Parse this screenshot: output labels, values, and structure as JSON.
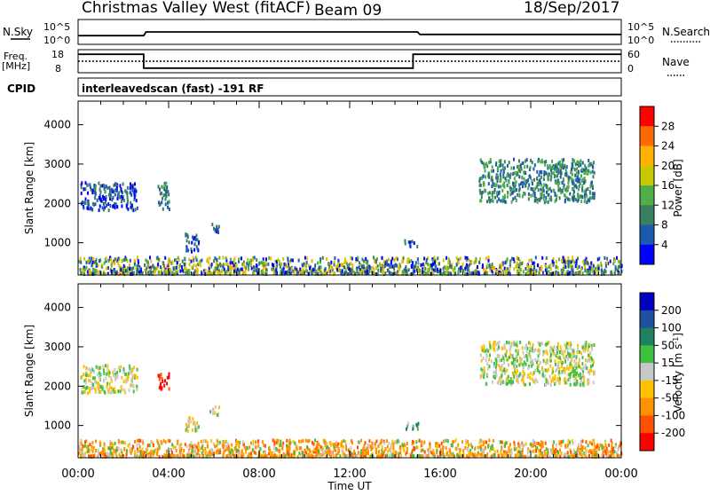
{
  "header": {
    "title": "Christmas Valley West (fitACF)",
    "beam": "Beam 09",
    "date": "18/Sep/2017"
  },
  "top_panels": {
    "nsky_label": "N.Sky",
    "nsky_ticks": [
      "10^5",
      "10^0"
    ],
    "nsearch_label": "N.Search",
    "nsearch_ticks": [
      "10^5",
      "10^0"
    ],
    "freq_label_1": "Freq.",
    "freq_label_2": "[MHz]",
    "freq_ticks": [
      "18",
      "8"
    ],
    "nave_label": "Nave",
    "nave_ticks": [
      "60",
      "0"
    ],
    "cpid_label": "CPID",
    "cpid_value": "interleavedscan (fast) -191 RF"
  },
  "chart_data": [
    {
      "type": "line",
      "name": "noise",
      "x_range_hours": [
        0,
        24
      ],
      "series": [
        {
          "values": [
            [
              0,
              0.35
            ],
            [
              2.9,
              0.35
            ],
            [
              3,
              0.5
            ],
            [
              15,
              0.5
            ],
            [
              15.1,
              0.4
            ],
            [
              24,
              0.4
            ]
          ]
        }
      ]
    },
    {
      "type": "line",
      "name": "frequency",
      "x_range_hours": [
        0,
        24
      ],
      "series": [
        {
          "values": [
            [
              0,
              0.8
            ],
            [
              2.9,
              0.8
            ],
            [
              2.9,
              0.2
            ],
            [
              14.8,
              0.2
            ],
            [
              14.8,
              0.8
            ],
            [
              24,
              0.8
            ]
          ]
        },
        {
          "values": [
            [
              0,
              0.5
            ],
            [
              24,
              0.5
            ]
          ],
          "dashed": true
        }
      ]
    },
    {
      "type": "heatmap",
      "name": "power",
      "ylabel": "Slant Range [km]",
      "ylim": [
        180,
        4600
      ],
      "y_ticks": [
        "1000",
        "2000",
        "3000",
        "4000"
      ],
      "colorbar_label": "Power [dB]",
      "colorbar_ticks": [
        "4",
        "8",
        "12",
        "16",
        "20",
        "24",
        "28"
      ],
      "colors": [
        "#0000ff",
        "#1c5ab0",
        "#3a8060",
        "#4fae4a",
        "#c8c800",
        "#ffb000",
        "#ff6a00",
        "#ff0000"
      ],
      "blobs": [
        {
          "t0": 0.1,
          "t1": 2.6,
          "r0": 1800,
          "r1": 2500,
          "level": 1
        },
        {
          "t0": 3.5,
          "t1": 4.0,
          "r0": 1800,
          "r1": 2500,
          "level": 2
        },
        {
          "t0": 4.7,
          "t1": 5.3,
          "r0": 750,
          "r1": 1200,
          "level": 1
        },
        {
          "t0": 5.8,
          "t1": 6.2,
          "r0": 1200,
          "r1": 1450,
          "level": 1
        },
        {
          "t0": 14.4,
          "t1": 15.0,
          "r0": 870,
          "r1": 1030,
          "level": 1
        },
        {
          "t0": 17.7,
          "t1": 22.8,
          "r0": 2000,
          "r1": 3100,
          "level": 2
        },
        {
          "t0": 0.0,
          "t1": 24.0,
          "r0": 180,
          "r1": 600,
          "level": 3
        }
      ]
    },
    {
      "type": "heatmap",
      "name": "velocity",
      "ylabel": "Slant Range [km]",
      "ylim": [
        180,
        4600
      ],
      "y_ticks": [
        "1000",
        "2000",
        "3000",
        "4000"
      ],
      "colorbar_label": "Velocity [m s-1]",
      "colorbar_ticks": [
        "200",
        "100",
        "50",
        "15",
        "-15",
        "-50",
        "-100",
        "-200"
      ],
      "colors": [
        "#0000c0",
        "#2050a0",
        "#208060",
        "#40c040",
        "#c8c8c8",
        "#ffc000",
        "#ff9000",
        "#ff5000",
        "#ff0000"
      ],
      "blobs": [
        {
          "t0": 0.1,
          "t1": 2.6,
          "r0": 1800,
          "r1": 2500,
          "level": 4
        },
        {
          "t0": 3.5,
          "t1": 4.0,
          "r0": 1900,
          "r1": 2300,
          "level": 8
        },
        {
          "t0": 4.7,
          "t1": 5.3,
          "r0": 750,
          "r1": 1200,
          "level": 4
        },
        {
          "t0": 5.8,
          "t1": 6.2,
          "r0": 1200,
          "r1": 1450,
          "level": 4
        },
        {
          "t0": 14.4,
          "t1": 15.0,
          "r0": 870,
          "r1": 1030,
          "level": 3
        },
        {
          "t0": 17.7,
          "t1": 22.8,
          "r0": 2000,
          "r1": 3100,
          "level": 4
        },
        {
          "t0": 0.0,
          "t1": 24.0,
          "r0": 180,
          "r1": 600,
          "level": 6
        }
      ]
    }
  ],
  "x_axis": {
    "label": "Time UT",
    "ticks": [
      "00:00",
      "04:00",
      "08:00",
      "12:00",
      "16:00",
      "20:00",
      "00:00"
    ]
  }
}
